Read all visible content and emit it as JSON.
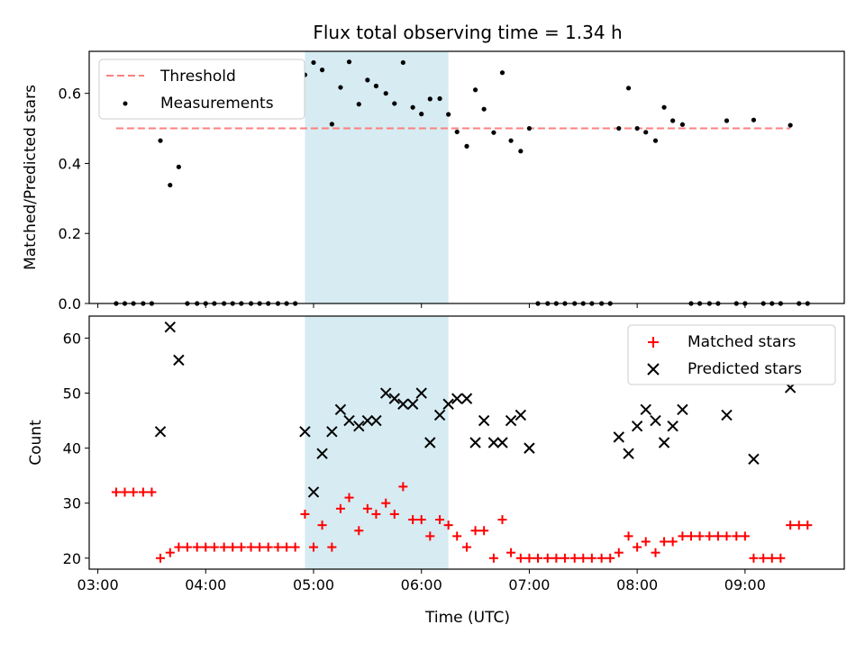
{
  "chart_data": [
    {
      "type": "scatter",
      "title": "Flux total observing time = 1.34 h",
      "ylabel": "Matched/Predicted stars",
      "xlabel": "",
      "x_unit": "hours UTC",
      "xlim": [
        2.92,
        9.92
      ],
      "ylim": [
        0,
        0.72
      ],
      "yticks": [
        "0.0",
        "0.2",
        "0.4",
        "0.6"
      ],
      "ytick_values": [
        0,
        0.2,
        0.4,
        0.6
      ],
      "shaded_span": [
        4.92,
        6.25
      ],
      "shade_color": "#add8e6",
      "legend_position": "upper left",
      "series": [
        {
          "name": "Threshold",
          "style": "dashed-line",
          "color": "#ff7f7f",
          "x": [
            3.17,
            9.42
          ],
          "values": [
            0.5,
            0.5
          ]
        },
        {
          "name": "Measurements",
          "style": "dot",
          "color": "#000000",
          "x": [
            3.17,
            3.25,
            3.33,
            3.42,
            3.5,
            3.58,
            3.67,
            3.75,
            3.83,
            3.92,
            4.0,
            4.08,
            4.17,
            4.25,
            4.33,
            4.42,
            4.5,
            4.58,
            4.67,
            4.75,
            4.83,
            4.92,
            5.0,
            5.08,
            5.17,
            5.25,
            5.33,
            5.42,
            5.5,
            5.58,
            5.67,
            5.75,
            5.83,
            5.92,
            6.0,
            6.08,
            6.17,
            6.25,
            6.33,
            6.42,
            6.5,
            6.58,
            6.67,
            6.75,
            6.83,
            6.92,
            7.0,
            7.08,
            7.17,
            7.25,
            7.33,
            7.42,
            7.5,
            7.58,
            7.67,
            7.75,
            7.83,
            7.92,
            8.0,
            8.08,
            8.17,
            8.25,
            8.33,
            8.42,
            8.5,
            8.58,
            8.67,
            8.75,
            8.83,
            8.92,
            9.0,
            9.08,
            9.17,
            9.25,
            9.33,
            9.42,
            9.5,
            9.58
          ],
          "values": [
            0,
            0,
            0,
            0,
            0,
            0.465,
            0.338,
            0.39,
            0,
            0,
            0,
            0,
            0,
            0,
            0,
            0,
            0,
            0,
            0,
            0,
            0,
            0.653,
            0.688,
            0.667,
            0.512,
            0.617,
            0.69,
            0.569,
            0.638,
            0.621,
            0.6,
            0.571,
            0.688,
            0.56,
            0.541,
            0.584,
            0.585,
            0.54,
            0.49,
            0.449,
            0.61,
            0.555,
            0.488,
            0.659,
            0.465,
            0.435,
            0.5,
            0,
            0,
            0,
            0,
            0,
            0,
            0,
            0,
            0,
            0.5,
            0.615,
            0.5,
            0.489,
            0.465,
            0.56,
            0.522,
            0.511,
            0,
            0,
            0,
            0,
            0.522,
            0,
            0,
            0.524,
            0,
            0,
            0,
            0.509,
            0,
            0
          ]
        }
      ]
    },
    {
      "type": "scatter",
      "title": "",
      "ylabel": "Count",
      "xlabel": "Time (UTC)",
      "x_unit": "hours UTC",
      "xlim": [
        2.92,
        9.92
      ],
      "ylim": [
        18,
        64
      ],
      "yticks": [
        "20",
        "30",
        "40",
        "50",
        "60"
      ],
      "ytick_values": [
        20,
        30,
        40,
        50,
        60
      ],
      "xticks": [
        "03:00",
        "04:00",
        "05:00",
        "06:00",
        "07:00",
        "08:00",
        "09:00"
      ],
      "xtick_values": [
        3,
        4,
        5,
        6,
        7,
        8,
        9
      ],
      "shaded_span": [
        4.92,
        6.25
      ],
      "shade_color": "#add8e6",
      "legend_position": "upper right",
      "series": [
        {
          "name": "Matched stars",
          "style": "plus",
          "color": "#ff0000",
          "x": [
            3.17,
            3.25,
            3.33,
            3.42,
            3.5,
            3.58,
            3.67,
            3.75,
            3.83,
            3.92,
            4.0,
            4.08,
            4.17,
            4.25,
            4.33,
            4.42,
            4.5,
            4.58,
            4.67,
            4.75,
            4.83,
            4.92,
            5.0,
            5.08,
            5.17,
            5.25,
            5.33,
            5.42,
            5.5,
            5.58,
            5.67,
            5.75,
            5.83,
            5.92,
            6.0,
            6.08,
            6.17,
            6.25,
            6.33,
            6.42,
            6.5,
            6.58,
            6.67,
            6.75,
            6.83,
            6.92,
            7.0,
            7.08,
            7.17,
            7.25,
            7.33,
            7.42,
            7.5,
            7.58,
            7.67,
            7.75,
            7.83,
            7.92,
            8.0,
            8.08,
            8.17,
            8.25,
            8.33,
            8.42,
            8.5,
            8.58,
            8.67,
            8.75,
            8.83,
            8.92,
            9.0,
            9.08,
            9.17,
            9.25,
            9.33,
            9.42,
            9.5,
            9.58
          ],
          "values": [
            32,
            32,
            32,
            32,
            32,
            20,
            21,
            22,
            22,
            22,
            22,
            22,
            22,
            22,
            22,
            22,
            22,
            22,
            22,
            22,
            22,
            28,
            22,
            26,
            22,
            29,
            31,
            25,
            29,
            28,
            30,
            28,
            33,
            27,
            27,
            24,
            27,
            26,
            24,
            22,
            25,
            25,
            20,
            27,
            21,
            20,
            20,
            20,
            20,
            20,
            20,
            20,
            20,
            20,
            20,
            20,
            21,
            24,
            22,
            23,
            21,
            23,
            23,
            24,
            24,
            24,
            24,
            24,
            24,
            24,
            24,
            20,
            20,
            20,
            20,
            26,
            26,
            26
          ]
        },
        {
          "name": "Predicted stars",
          "style": "x",
          "color": "#000000",
          "x": [
            3.58,
            3.67,
            3.75,
            4.92,
            5.0,
            5.08,
            5.17,
            5.25,
            5.33,
            5.42,
            5.5,
            5.58,
            5.67,
            5.75,
            5.83,
            5.92,
            6.0,
            6.08,
            6.17,
            6.25,
            6.33,
            6.42,
            6.5,
            6.58,
            6.67,
            6.75,
            6.83,
            6.92,
            7.0,
            7.83,
            7.92,
            8.0,
            8.08,
            8.17,
            8.25,
            8.33,
            8.42,
            8.83,
            9.08,
            9.42
          ],
          "values": [
            43,
            62,
            56,
            43,
            32,
            39,
            43,
            47,
            45,
            44,
            45,
            45,
            50,
            49,
            48,
            48,
            50,
            41,
            46,
            48,
            49,
            49,
            41,
            45,
            41,
            41,
            45,
            46,
            40,
            42,
            39,
            44,
            47,
            45,
            41,
            44,
            47,
            46,
            38,
            51
          ]
        }
      ]
    }
  ]
}
